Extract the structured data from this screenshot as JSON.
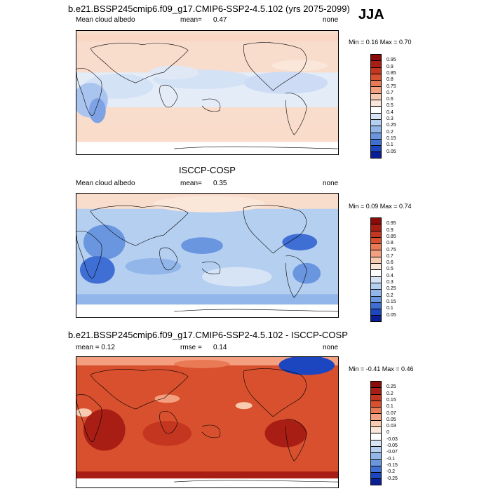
{
  "season": "JJA",
  "panels": [
    {
      "title": "b.e21.BSSP245cmip6.f09_g17.CMIP6-SSP2-4.5.102 (yrs 2075-2099)",
      "left_label": "Mean cloud albedo",
      "mean_label": "mean=",
      "mean_value": "0.47",
      "right_label": "none",
      "minmax": "Min =   0.16 Max =   0.70",
      "levels": [
        "0.95",
        "0.9",
        "0.85",
        "0.8",
        "0.75",
        "0.7",
        "0.6",
        "0.5",
        "0.4",
        "0.3",
        "0.25",
        "0.2",
        "0.15",
        "0.1",
        "0.05"
      ],
      "colors": [
        "#8b0a0a",
        "#a81e14",
        "#c4361f",
        "#d8502e",
        "#ea7a56",
        "#f4a080",
        "#f8cab0",
        "#fbe6da",
        "#ffffff",
        "#d7e4f6",
        "#b5cff0",
        "#92b6ea",
        "#6a96e0",
        "#3f6ed4",
        "#1c45c0",
        "#0a1f96"
      ]
    },
    {
      "title": "ISCCP-COSP",
      "left_label": "Mean cloud albedo",
      "mean_label": "mean=",
      "mean_value": "0.35",
      "right_label": "none",
      "minmax": "Min =   0.09 Max =   0.74",
      "levels": [
        "0.95",
        "0.9",
        "0.85",
        "0.8",
        "0.75",
        "0.7",
        "0.6",
        "0.5",
        "0.4",
        "0.3",
        "0.25",
        "0.2",
        "0.15",
        "0.1",
        "0.05"
      ],
      "colors": [
        "#8b0a0a",
        "#a81e14",
        "#c4361f",
        "#d8502e",
        "#ea7a56",
        "#f4a080",
        "#f8cab0",
        "#fbe6da",
        "#ffffff",
        "#d7e4f6",
        "#b5cff0",
        "#92b6ea",
        "#6a96e0",
        "#3f6ed4",
        "#1c45c0",
        "#0a1f96"
      ]
    },
    {
      "title": "b.e21.BSSP245cmip6.f09_g17.CMIP6-SSP2-4.5.102 - ISCCP-COSP",
      "left_label": "mean =   0.12",
      "mean_label": "rmse =",
      "mean_value": "0.14",
      "right_label": "none",
      "minmax": "Min = -0.41 Max =   0.46",
      "levels": [
        "0.25",
        "0.2",
        "0.15",
        "0.1",
        "0.07",
        "0.05",
        "0.03",
        "0",
        "-0.03",
        "-0.05",
        "-0.07",
        "-0.1",
        "-0.15",
        "-0.2",
        "-0.25"
      ],
      "colors": [
        "#8b0a0a",
        "#a81e14",
        "#c4361f",
        "#d8502e",
        "#ea7a56",
        "#f4a080",
        "#f8cab0",
        "#fbe6da",
        "#ffffff",
        "#d7e4f6",
        "#b5cff0",
        "#92b6ea",
        "#6a96e0",
        "#3f6ed4",
        "#1c45c0",
        "#0a1f96"
      ]
    }
  ]
}
